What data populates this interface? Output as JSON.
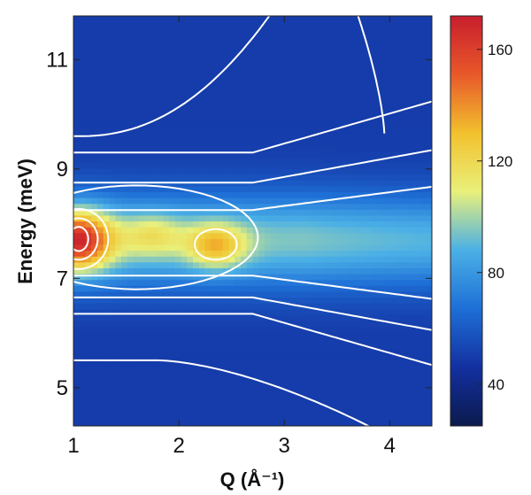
{
  "chart_data": {
    "type": "heatmap",
    "title": "",
    "xlabel": "Q (Å⁻¹)",
    "ylabel": "Energy (meV)",
    "xlim": [
      1.0,
      4.4
    ],
    "ylim": [
      4.3,
      11.8
    ],
    "x_ticks": [
      1,
      2,
      3,
      4
    ],
    "y_ticks": [
      5,
      7,
      9,
      11
    ],
    "colorbar": {
      "range": [
        25,
        172
      ],
      "ticks": [
        40,
        80,
        120,
        160
      ],
      "colormap": [
        "#0b1a4d",
        "#1330a0",
        "#1e6fd6",
        "#4bb0e6",
        "#e9f07a",
        "#f2c12e",
        "#e8582a",
        "#c81e2d"
      ]
    },
    "features": {
      "background": 50,
      "band_center_energy": 7.7,
      "band_value": 95,
      "peaks": [
        {
          "q": 1.05,
          "energy": 7.7,
          "value": 170
        },
        {
          "q": 2.35,
          "energy": 7.6,
          "value": 135
        },
        {
          "q": 1.75,
          "energy": 7.8,
          "value": 118
        }
      ]
    },
    "contour_color": "#ffffff"
  }
}
